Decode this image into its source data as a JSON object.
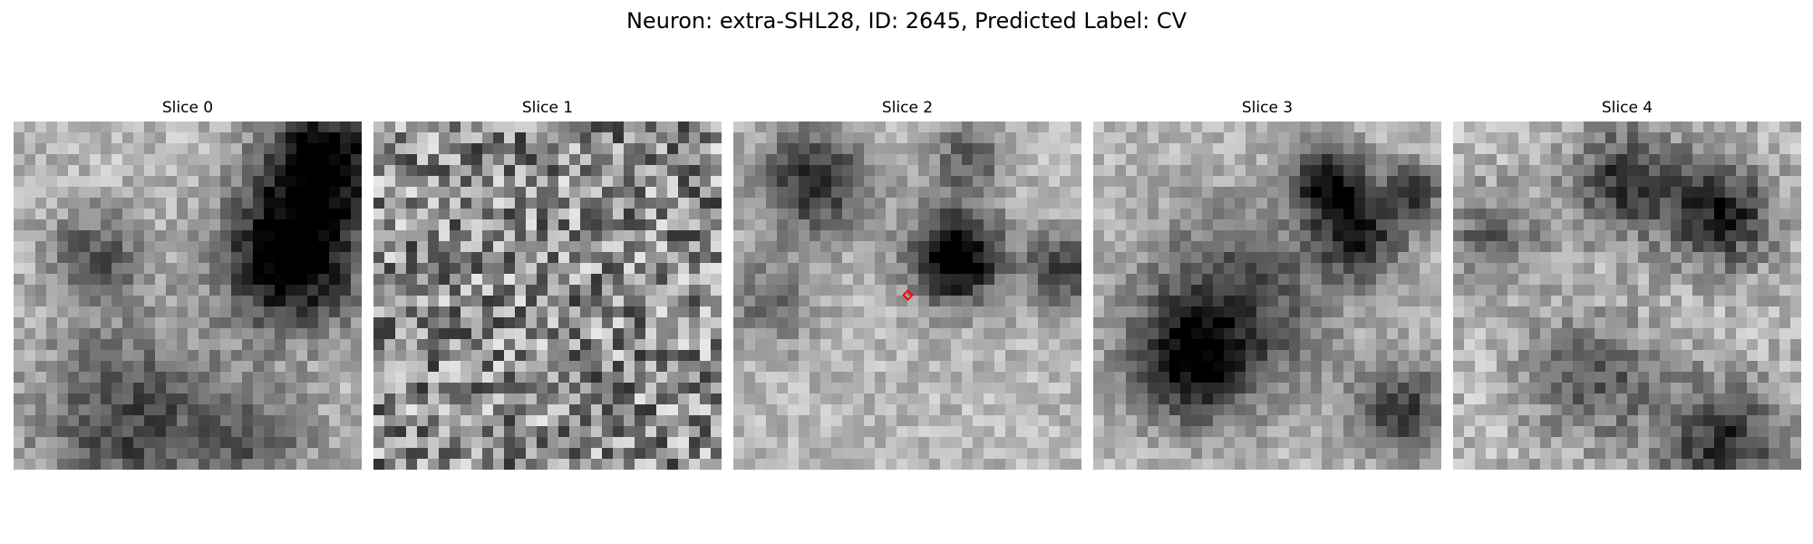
{
  "figure": {
    "title": "Neuron: extra-SHL28, ID: 2645, Predicted Label: CV"
  },
  "slices": [
    {
      "label": "Slice 0"
    },
    {
      "label": "Slice 1"
    },
    {
      "label": "Slice 2",
      "has_marker": true,
      "marker_color": "#ff0000"
    },
    {
      "label": "Slice 3"
    },
    {
      "label": "Slice 4"
    }
  ],
  "colors": {
    "marker": "#ff0000",
    "background": "#ffffff"
  }
}
